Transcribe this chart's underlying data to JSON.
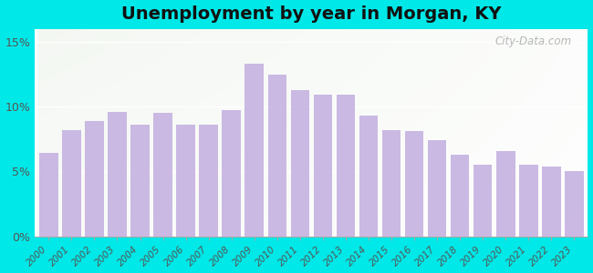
{
  "title": "Unemployment by year in Morgan, KY",
  "years": [
    2000,
    2001,
    2002,
    2003,
    2004,
    2005,
    2006,
    2007,
    2008,
    2009,
    2010,
    2011,
    2012,
    2013,
    2014,
    2015,
    2016,
    2017,
    2018,
    2019,
    2020,
    2021,
    2022,
    2023
  ],
  "values": [
    6.4,
    8.2,
    8.9,
    9.6,
    8.6,
    9.5,
    8.6,
    8.6,
    9.7,
    13.3,
    12.5,
    11.3,
    10.9,
    10.9,
    9.3,
    8.2,
    8.1,
    7.4,
    6.3,
    5.5,
    6.6,
    5.5,
    5.4,
    5.0
  ],
  "bar_color": "#c4b0e0",
  "yticks": [
    0,
    5,
    10,
    15
  ],
  "ytick_labels": [
    "0%",
    "5%",
    "10%",
    "15%"
  ],
  "ylim": [
    0,
    16
  ],
  "background_outer": "#00e8e8",
  "title_fontsize": 14,
  "watermark": "City-Data.com"
}
